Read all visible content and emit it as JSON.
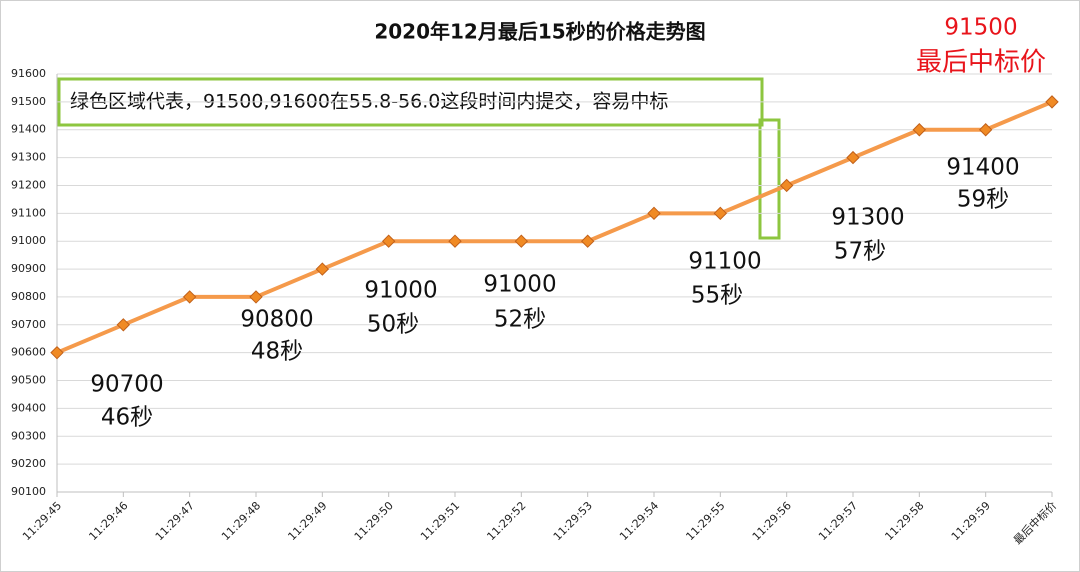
{
  "chart_data": {
    "type": "line",
    "title": "2020年12月最后15秒的价格走势图",
    "categories": [
      "11:29:45",
      "11:29:46",
      "11:29:47",
      "11:29:48",
      "11:29:49",
      "11:29:50",
      "11:29:51",
      "11:29:52",
      "11:29:53",
      "11:29:54",
      "11:29:55",
      "11:29:56",
      "11:29:57",
      "11:29:58",
      "11:29:59",
      "最后中标价"
    ],
    "series": [
      {
        "name": "价格",
        "color": "#f59a4b",
        "values": [
          90600,
          90700,
          90800,
          90800,
          90900,
          91000,
          91000,
          91000,
          91000,
          91100,
          91100,
          91200,
          91300,
          91400,
          91400,
          91500
        ]
      }
    ],
    "ylim": [
      90100,
      91600
    ],
    "yticks": [
      90100,
      90200,
      90300,
      90400,
      90500,
      90600,
      90700,
      90800,
      90900,
      91000,
      91100,
      91200,
      91300,
      91400,
      91500,
      91600
    ],
    "grid": true,
    "box_note": "绿色区域代表，91500,91600在55.8-56.0这段时间内提交，容易中标",
    "annotations": [
      {
        "lines": [
          "90700",
          "46秒"
        ]
      },
      {
        "lines": [
          "90800",
          "48秒"
        ]
      },
      {
        "lines": [
          "91000",
          "50秒"
        ]
      },
      {
        "lines": [
          "91000",
          "52秒"
        ]
      },
      {
        "lines": [
          "91100",
          "55秒"
        ]
      },
      {
        "lines": [
          "91300",
          "57秒"
        ]
      },
      {
        "lines": [
          "91400",
          "59秒"
        ]
      },
      {
        "lines": [
          "91500",
          "最后中标价"
        ],
        "color": "#e8141b"
      }
    ]
  }
}
